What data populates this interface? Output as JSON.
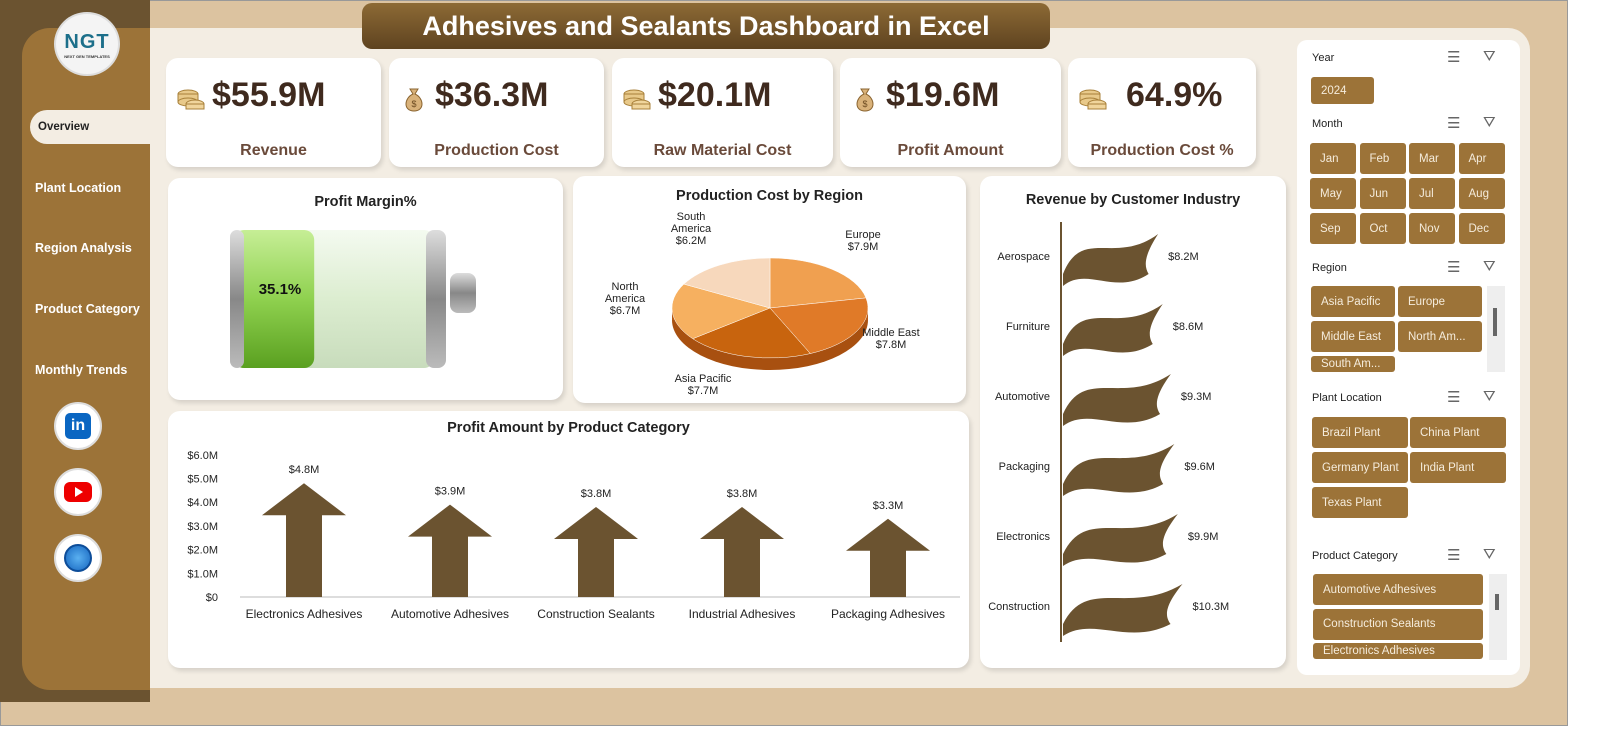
{
  "title": "Adhesives and Sealants Dashboard in Excel",
  "logo": {
    "text": "NGT",
    "sub": "NEXT GEN TEMPLATES"
  },
  "nav": [
    {
      "label": "Overview",
      "active": true
    },
    {
      "label": "Plant Location"
    },
    {
      "label": "Region Analysis"
    },
    {
      "label": "Product Category"
    },
    {
      "label": "Monthly Trends"
    }
  ],
  "social": [
    "linkedin-icon",
    "youtube-icon",
    "globe-icon"
  ],
  "kpis": [
    {
      "value": "$55.9M",
      "label": "Revenue",
      "icon": "coins-icon"
    },
    {
      "value": "$36.3M",
      "label": "Production Cost",
      "icon": "money-bag-icon"
    },
    {
      "value": "$20.1M",
      "label": "Raw Material Cost",
      "icon": "coins-icon"
    },
    {
      "value": "$19.6M",
      "label": "Profit Amount",
      "icon": "money-bag-icon"
    },
    {
      "value": "64.9%",
      "label": "Production Cost %",
      "icon": "coins-icon"
    }
  ],
  "colors": {
    "brand": "#9c7338",
    "dark": "#6b5330",
    "bar": "#6b5330",
    "battery": "#8fd14f"
  },
  "chart_data": [
    {
      "type": "gauge",
      "title": "Profit Margin%",
      "value": 35.1,
      "label": "35.1%"
    },
    {
      "type": "pie",
      "title": "Production Cost by Region",
      "categories": [
        "Europe",
        "Middle East",
        "Asia Pacific",
        "North America",
        "South America"
      ],
      "values": [
        7.9,
        7.8,
        7.7,
        6.7,
        6.2
      ],
      "labels": [
        "$7.9M",
        "$7.8M",
        "$7.7M",
        "$6.7M",
        "$6.2M"
      ],
      "colors": [
        "#f0a050",
        "#e07a28",
        "#c8640e",
        "#f6b060",
        "#f7d8bc"
      ]
    },
    {
      "type": "bar",
      "title": "Revenue by Customer Industry",
      "orientation": "horizontal",
      "categories": [
        "Aerospace",
        "Furniture",
        "Automotive",
        "Packaging",
        "Electronics",
        "Construction"
      ],
      "values": [
        8.2,
        8.6,
        9.3,
        9.6,
        9.9,
        10.3
      ],
      "labels": [
        "$8.2M",
        "$8.6M",
        "$9.3M",
        "$9.6M",
        "$9.9M",
        "$10.3M"
      ]
    },
    {
      "type": "bar",
      "title": "Profit Amount by Product Category",
      "categories": [
        "Electronics Adhesives",
        "Automotive Adhesives",
        "Construction Sealants",
        "Industrial Adhesives",
        "Packaging Adhesives"
      ],
      "values": [
        4.8,
        3.9,
        3.8,
        3.8,
        3.3
      ],
      "labels": [
        "$4.8M",
        "$3.9M",
        "$3.8M",
        "$3.8M",
        "$3.3M"
      ],
      "ylim": [
        0,
        6
      ],
      "yticks": [
        "$0",
        "$1.0M",
        "$2.0M",
        "$3.0M",
        "$4.0M",
        "$5.0M",
        "$6.0M"
      ]
    }
  ],
  "slicers": {
    "year": {
      "title": "Year",
      "items": [
        "2024"
      ]
    },
    "month": {
      "title": "Month",
      "items": [
        "Jan",
        "Feb",
        "Mar",
        "Apr",
        "May",
        "Jun",
        "Jul",
        "Aug",
        "Sep",
        "Oct",
        "Nov",
        "Dec"
      ]
    },
    "region": {
      "title": "Region",
      "items": [
        "Asia Pacific",
        "Europe",
        "Middle East",
        "North Am...",
        "South Am..."
      ]
    },
    "plant": {
      "title": "Plant Location",
      "items": [
        "Brazil Plant",
        "China Plant",
        "Germany Plant",
        "India Plant",
        "Texas Plant"
      ]
    },
    "product": {
      "title": "Product Category",
      "items": [
        "Automotive Adhesives",
        "Construction Sealants",
        "Electronics Adhesives"
      ]
    }
  }
}
